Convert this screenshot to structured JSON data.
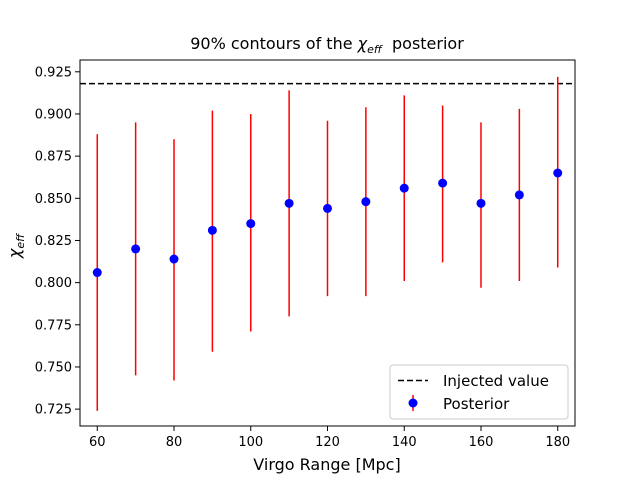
{
  "chart_data": {
    "type": "scatter",
    "title_prefix": "90% contours of the ",
    "title_symbol": "χ",
    "title_subscript": "eff",
    "title_suffix": "  posterior",
    "xlabel": "Virgo Range [Mpc]",
    "ylabel_symbol": "χ",
    "ylabel_subscript": "eff",
    "xlim": [
      55.5,
      184.5
    ],
    "ylim": [
      0.715,
      0.932
    ],
    "xticks": [
      60,
      80,
      100,
      120,
      140,
      160,
      180
    ],
    "yticks": [
      0.725,
      0.75,
      0.775,
      0.8,
      0.825,
      0.85,
      0.875,
      0.9,
      0.925
    ],
    "ytick_labels": [
      "0.725",
      "0.750",
      "0.775",
      "0.800",
      "0.825",
      "0.850",
      "0.875",
      "0.900",
      "0.925"
    ],
    "injected_value": 0.918,
    "series": [
      {
        "name": "Posterior",
        "x": [
          60,
          70,
          80,
          90,
          100,
          110,
          120,
          130,
          140,
          150,
          160,
          170,
          180
        ],
        "y": [
          0.806,
          0.82,
          0.814,
          0.831,
          0.835,
          0.847,
          0.844,
          0.848,
          0.856,
          0.859,
          0.847,
          0.852,
          0.865
        ],
        "lower": [
          0.724,
          0.745,
          0.742,
          0.759,
          0.771,
          0.78,
          0.792,
          0.792,
          0.801,
          0.812,
          0.797,
          0.801,
          0.809
        ],
        "upper": [
          0.888,
          0.895,
          0.885,
          0.902,
          0.9,
          0.914,
          0.896,
          0.904,
          0.911,
          0.905,
          0.895,
          0.903,
          0.922
        ],
        "marker_color": "#0000ff",
        "errorbar_color": "#ff0000"
      }
    ],
    "legend": {
      "placement": "lower-right",
      "entries": [
        "Injected value",
        "Posterior"
      ]
    }
  }
}
